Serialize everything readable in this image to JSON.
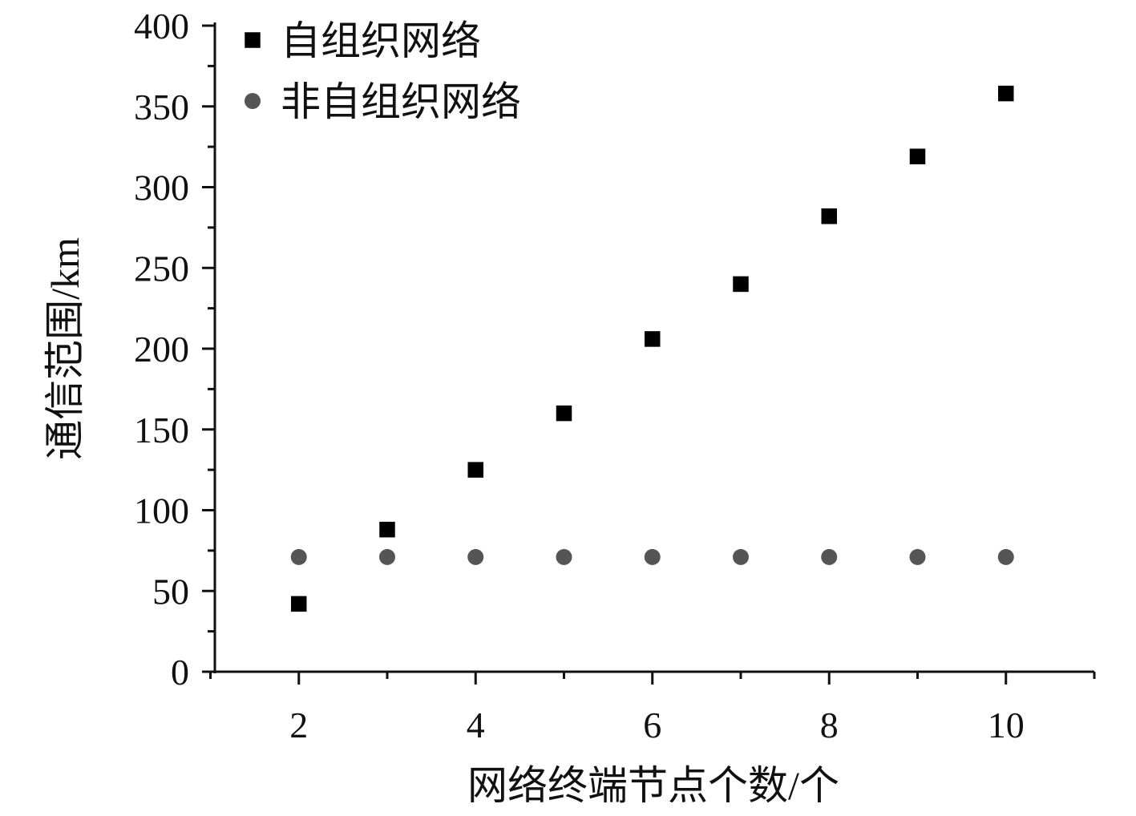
{
  "chart_data": {
    "type": "scatter",
    "xlabel": "网络终端节点个数/个",
    "ylabel": "通信范围/km",
    "xlim": [
      1.05,
      11
    ],
    "ylim": [
      0,
      400
    ],
    "xticks": [
      "2",
      "4",
      "6",
      "8",
      "10"
    ],
    "xtick_values": [
      2,
      4,
      6,
      8,
      10
    ],
    "yticks": [
      "0",
      "50",
      "100",
      "150",
      "200",
      "250",
      "300",
      "350",
      "400"
    ],
    "ytick_values": [
      0,
      50,
      100,
      150,
      200,
      250,
      300,
      350,
      400
    ],
    "legend_position": "top-left",
    "grid": false,
    "series": [
      {
        "name": "自组织网络",
        "marker": "square",
        "color": "#000000",
        "x": [
          2,
          3,
          4,
          5,
          6,
          7,
          8,
          9,
          10
        ],
        "y": [
          42,
          88,
          125,
          160,
          206,
          240,
          282,
          319,
          358
        ]
      },
      {
        "name": "非自组织网络",
        "marker": "circle",
        "color": "#555555",
        "x": [
          2,
          3,
          4,
          5,
          6,
          7,
          8,
          9,
          10
        ],
        "y": [
          71,
          71,
          71,
          71,
          71,
          71,
          71,
          71,
          71
        ]
      }
    ]
  }
}
